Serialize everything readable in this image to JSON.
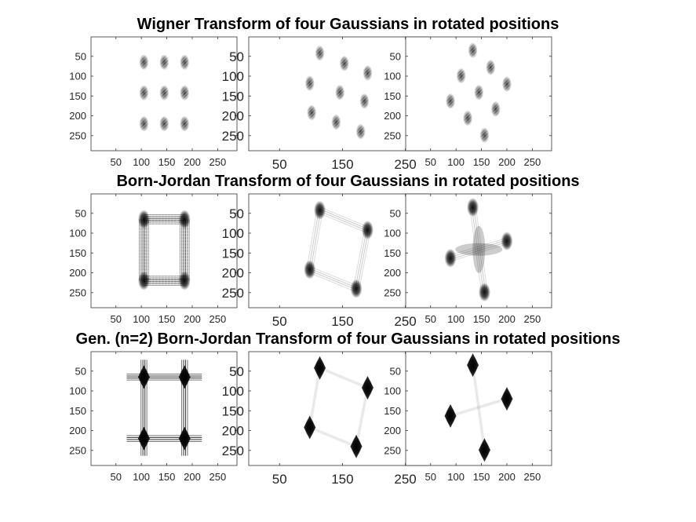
{
  "figure": {
    "row_titles": [
      "Wigner Transform of four Gaussians in rotated positions",
      "Born-Jordan Transform of four Gaussians in rotated positions",
      "Gen. (n=2) Born-Jordan Transform of four Gaussians in rotated positions"
    ]
  },
  "chart_data": [
    {
      "type": "heatmap",
      "row": 0,
      "col": 0,
      "colormap": "gray-inverted",
      "xlim": [
        1,
        288
      ],
      "ylim": [
        1,
        288
      ],
      "y_reversed": true,
      "xticks": [
        50,
        100,
        150,
        200,
        250
      ],
      "yticks": [
        50,
        100,
        150,
        200,
        250
      ],
      "blobs": [
        {
          "x": 105,
          "y": 65
        },
        {
          "x": 145,
          "y": 65
        },
        {
          "x": 185,
          "y": 65
        },
        {
          "x": 105,
          "y": 142
        },
        {
          "x": 145,
          "y": 142
        },
        {
          "x": 185,
          "y": 142
        },
        {
          "x": 105,
          "y": 220
        },
        {
          "x": 145,
          "y": 220
        },
        {
          "x": 185,
          "y": 220
        }
      ],
      "segments": []
    },
    {
      "type": "heatmap",
      "row": 0,
      "col": 1,
      "colormap": "gray-inverted",
      "xlim": [
        1,
        288
      ],
      "ylim": [
        1,
        288
      ],
      "y_reversed": true,
      "xticks": [
        50,
        150,
        250
      ],
      "yticks": [
        50,
        100,
        150,
        200,
        250
      ],
      "blobs": [
        {
          "x": 114,
          "y": 42
        },
        {
          "x": 153,
          "y": 68
        },
        {
          "x": 190,
          "y": 92
        },
        {
          "x": 98,
          "y": 118
        },
        {
          "x": 146,
          "y": 141
        },
        {
          "x": 185,
          "y": 163
        },
        {
          "x": 101,
          "y": 192
        },
        {
          "x": 140,
          "y": 216
        },
        {
          "x": 179,
          "y": 240
        }
      ],
      "segments": []
    },
    {
      "type": "heatmap",
      "row": 0,
      "col": 2,
      "colormap": "gray-inverted",
      "xlim": [
        1,
        288
      ],
      "ylim": [
        1,
        288
      ],
      "y_reversed": true,
      "xticks": [
        50,
        100,
        150,
        200,
        250
      ],
      "yticks": [
        50,
        100,
        150,
        200,
        250
      ],
      "blobs": [
        {
          "x": 133,
          "y": 35
        },
        {
          "x": 168,
          "y": 78
        },
        {
          "x": 200,
          "y": 120
        },
        {
          "x": 110,
          "y": 99
        },
        {
          "x": 145,
          "y": 141
        },
        {
          "x": 178,
          "y": 183
        },
        {
          "x": 89,
          "y": 163
        },
        {
          "x": 123,
          "y": 206
        },
        {
          "x": 156,
          "y": 249
        }
      ],
      "segments": []
    },
    {
      "type": "heatmap",
      "row": 1,
      "col": 0,
      "colormap": "gray-inverted",
      "xlim": [
        1,
        288
      ],
      "ylim": [
        1,
        288
      ],
      "y_reversed": true,
      "xticks": [
        50,
        100,
        150,
        200,
        250
      ],
      "yticks": [
        50,
        100,
        150,
        200,
        250
      ],
      "blobs": [
        {
          "x": 105,
          "y": 65
        },
        {
          "x": 185,
          "y": 65
        },
        {
          "x": 105,
          "y": 220
        },
        {
          "x": 185,
          "y": 220
        }
      ],
      "segments": [
        {
          "x1": 105,
          "y1": 65,
          "x2": 185,
          "y2": 65
        },
        {
          "x1": 105,
          "y1": 220,
          "x2": 185,
          "y2": 220
        },
        {
          "x1": 105,
          "y1": 65,
          "x2": 105,
          "y2": 220
        },
        {
          "x1": 185,
          "y1": 65,
          "x2": 185,
          "y2": 220
        }
      ]
    },
    {
      "type": "heatmap",
      "row": 1,
      "col": 1,
      "colormap": "gray-inverted",
      "xlim": [
        1,
        288
      ],
      "ylim": [
        1,
        288
      ],
      "y_reversed": true,
      "xticks": [
        50,
        150,
        250
      ],
      "yticks": [
        50,
        100,
        150,
        200,
        250
      ],
      "blobs": [
        {
          "x": 114,
          "y": 42
        },
        {
          "x": 190,
          "y": 92
        },
        {
          "x": 98,
          "y": 192
        },
        {
          "x": 172,
          "y": 240
        }
      ],
      "segments": [
        {
          "x1": 114,
          "y1": 42,
          "x2": 190,
          "y2": 92
        },
        {
          "x1": 98,
          "y1": 192,
          "x2": 172,
          "y2": 240
        },
        {
          "x1": 114,
          "y1": 42,
          "x2": 98,
          "y2": 192
        },
        {
          "x1": 190,
          "y1": 92,
          "x2": 172,
          "y2": 240
        }
      ]
    },
    {
      "type": "heatmap",
      "row": 1,
      "col": 2,
      "colormap": "gray-inverted",
      "xlim": [
        1,
        288
      ],
      "ylim": [
        1,
        288
      ],
      "y_reversed": true,
      "xticks": [
        50,
        100,
        150,
        200,
        250
      ],
      "yticks": [
        50,
        100,
        150,
        200,
        250
      ],
      "blobs": [
        {
          "x": 133,
          "y": 35
        },
        {
          "x": 200,
          "y": 120
        },
        {
          "x": 89,
          "y": 163
        },
        {
          "x": 156,
          "y": 249
        }
      ],
      "segments": [
        {
          "x1": 133,
          "y1": 35,
          "x2": 156,
          "y2": 249
        },
        {
          "x1": 89,
          "y1": 163,
          "x2": 200,
          "y2": 120
        }
      ]
    },
    {
      "type": "heatmap",
      "row": 2,
      "col": 0,
      "colormap": "gray-inverted",
      "xlim": [
        1,
        288
      ],
      "ylim": [
        1,
        288
      ],
      "y_reversed": true,
      "xticks": [
        50,
        100,
        150,
        200,
        250
      ],
      "yticks": [
        50,
        100,
        150,
        200,
        250
      ],
      "blobs": [
        {
          "x": 105,
          "y": 65
        },
        {
          "x": 185,
          "y": 65
        },
        {
          "x": 105,
          "y": 220
        },
        {
          "x": 185,
          "y": 220
        }
      ],
      "segments": [
        {
          "x1": 105,
          "y1": 65,
          "x2": 185,
          "y2": 65
        },
        {
          "x1": 105,
          "y1": 220,
          "x2": 185,
          "y2": 220
        },
        {
          "x1": 105,
          "y1": 65,
          "x2": 105,
          "y2": 220
        },
        {
          "x1": 185,
          "y1": 65,
          "x2": 185,
          "y2": 220
        }
      ]
    },
    {
      "type": "heatmap",
      "row": 2,
      "col": 1,
      "colormap": "gray-inverted",
      "xlim": [
        1,
        288
      ],
      "ylim": [
        1,
        288
      ],
      "y_reversed": true,
      "xticks": [
        50,
        150,
        250
      ],
      "yticks": [
        50,
        100,
        150,
        200,
        250
      ],
      "blobs": [
        {
          "x": 114,
          "y": 42
        },
        {
          "x": 190,
          "y": 92
        },
        {
          "x": 98,
          "y": 192
        },
        {
          "x": 172,
          "y": 240
        }
      ],
      "segments": [
        {
          "x1": 114,
          "y1": 42,
          "x2": 190,
          "y2": 92
        },
        {
          "x1": 98,
          "y1": 192,
          "x2": 172,
          "y2": 240
        },
        {
          "x1": 114,
          "y1": 42,
          "x2": 98,
          "y2": 192
        },
        {
          "x1": 190,
          "y1": 92,
          "x2": 172,
          "y2": 240
        }
      ]
    },
    {
      "type": "heatmap",
      "row": 2,
      "col": 2,
      "colormap": "gray-inverted",
      "xlim": [
        1,
        288
      ],
      "ylim": [
        1,
        288
      ],
      "y_reversed": true,
      "xticks": [
        50,
        100,
        150,
        200,
        250
      ],
      "yticks": [
        50,
        100,
        150,
        200,
        250
      ],
      "blobs": [
        {
          "x": 133,
          "y": 35
        },
        {
          "x": 200,
          "y": 120
        },
        {
          "x": 89,
          "y": 163
        },
        {
          "x": 156,
          "y": 249
        }
      ],
      "segments": [
        {
          "x1": 133,
          "y1": 35,
          "x2": 156,
          "y2": 249
        },
        {
          "x1": 89,
          "y1": 163,
          "x2": 200,
          "y2": 120
        }
      ]
    }
  ]
}
